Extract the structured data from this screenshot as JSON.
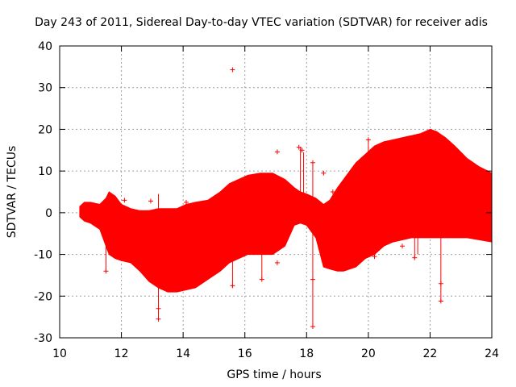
{
  "chart_data": {
    "type": "scatter",
    "title": "Day 243 of 2011, Sidereal Day-to-day VTEC variation (SDTVAR) for receiver adis",
    "xlabel": "GPS time / hours",
    "ylabel": "SDTVAR / TECUs",
    "xlim": [
      10,
      24
    ],
    "ylim": [
      -30,
      40
    ],
    "xticks": [
      10,
      12,
      14,
      16,
      18,
      20,
      22,
      24
    ],
    "yticks": [
      -30,
      -20,
      -10,
      0,
      10,
      20,
      30,
      40
    ],
    "grid": true,
    "series_color": "#ff0000",
    "marker": "+",
    "envelope": {
      "x": [
        10.65,
        10.8,
        11.0,
        11.3,
        11.5,
        11.6,
        11.8,
        12.0,
        12.3,
        12.6,
        12.9,
        13.2,
        13.5,
        13.8,
        14.1,
        14.4,
        14.8,
        15.2,
        15.5,
        15.8,
        16.1,
        16.5,
        16.9,
        17.3,
        17.6,
        17.8,
        18.0,
        18.3,
        18.55,
        18.75,
        19.0,
        19.2,
        19.4,
        19.6,
        19.9,
        20.2,
        20.5,
        20.8,
        21.1,
        21.4,
        21.7,
        22.0,
        22.2,
        22.5,
        22.8,
        23.2,
        23.6,
        24.0
      ],
      "upper": [
        1.5,
        2.5,
        2.5,
        2.0,
        3.5,
        5.0,
        4.0,
        2.0,
        1.0,
        0.5,
        0.5,
        1.0,
        1.0,
        1.0,
        2.0,
        2.5,
        3.0,
        5.0,
        7.0,
        8.0,
        9.0,
        9.5,
        9.5,
        8.0,
        6.0,
        5.0,
        4.5,
        3.5,
        2.0,
        3.0,
        6.0,
        8.0,
        10.0,
        12.0,
        14.0,
        16.0,
        17.0,
        17.5,
        18.0,
        18.5,
        19.0,
        20.0,
        19.5,
        18.0,
        16.0,
        13.0,
        11.0,
        9.5
      ],
      "lower": [
        -1.0,
        -2.0,
        -2.5,
        -4.0,
        -8.0,
        -10.0,
        -11.0,
        -11.5,
        -12.0,
        -14.0,
        -16.5,
        -18.0,
        -19.0,
        -19.0,
        -18.5,
        -18.0,
        -16.0,
        -14.0,
        -12.0,
        -11.0,
        -10.0,
        -10.0,
        -10.0,
        -8.0,
        -3.0,
        -2.5,
        -3.0,
        -6.0,
        -13.0,
        -13.5,
        -14.0,
        -14.0,
        -13.5,
        -13.0,
        -11.0,
        -10.0,
        -8.0,
        -7.0,
        -6.5,
        -6.0,
        -6.0,
        -6.0,
        -6.0,
        -6.0,
        -6.0,
        -6.0,
        -6.5,
        -7.0
      ]
    },
    "outliers": [
      {
        "x": 15.6,
        "y": 34.3
      },
      {
        "x": 17.05,
        "y": 14.6
      },
      {
        "x": 18.55,
        "y": 9.5
      },
      {
        "x": 18.2,
        "y": 12.0
      },
      {
        "x": 18.2,
        "y": -27.3
      },
      {
        "x": 18.2,
        "y": -16.0
      },
      {
        "x": 13.2,
        "y": -25.5
      },
      {
        "x": 13.2,
        "y": -23.0
      },
      {
        "x": 12.1,
        "y": 3.0
      },
      {
        "x": 11.5,
        "y": -14.0
      },
      {
        "x": 17.75,
        "y": 15.7
      },
      {
        "x": 17.85,
        "y": 15.0
      },
      {
        "x": 18.85,
        "y": 5.0
      },
      {
        "x": 15.4,
        "y": 5.5
      },
      {
        "x": 16.55,
        "y": -16.0
      },
      {
        "x": 17.05,
        "y": -12.0
      },
      {
        "x": 15.6,
        "y": -17.5
      },
      {
        "x": 16.6,
        "y": -6.0
      },
      {
        "x": 14.1,
        "y": 2.5
      },
      {
        "x": 12.95,
        "y": 2.8
      },
      {
        "x": 20.2,
        "y": -10.5
      },
      {
        "x": 21.5,
        "y": -10.8
      },
      {
        "x": 22.35,
        "y": -21.2
      },
      {
        "x": 22.35,
        "y": -17.0
      },
      {
        "x": 21.1,
        "y": -8.0
      },
      {
        "x": 22.9,
        "y": 3.0
      },
      {
        "x": 23.9,
        "y": 1.0
      },
      {
        "x": 20.0,
        "y": 17.5
      }
    ],
    "spikes": [
      {
        "x": 18.2,
        "from": -27.3,
        "to": 12.0
      },
      {
        "x": 13.2,
        "from": -25.5,
        "to": 4.5
      },
      {
        "x": 22.35,
        "from": -21.2,
        "to": -5.0
      },
      {
        "x": 21.5,
        "from": -11.0,
        "to": 0.0
      },
      {
        "x": 11.5,
        "from": -14.0,
        "to": -4.0
      },
      {
        "x": 17.8,
        "from": 2.0,
        "to": 15.8
      },
      {
        "x": 17.9,
        "from": 2.0,
        "to": 14.5
      },
      {
        "x": 15.6,
        "from": -18.0,
        "to": -8.0
      },
      {
        "x": 16.55,
        "from": -16.0,
        "to": -8.0
      },
      {
        "x": 21.6,
        "from": -10.0,
        "to": 0.0
      },
      {
        "x": 20.0,
        "from": 11.0,
        "to": 17.5
      }
    ]
  }
}
